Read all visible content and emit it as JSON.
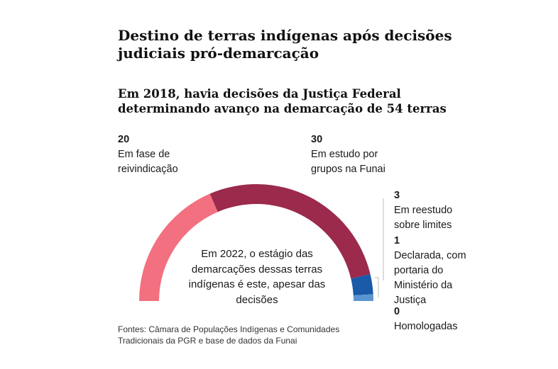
{
  "title": "Destino de terras indígenas após decisões judiciais pró-demarcação",
  "subtitle": "Em 2018, havia decisões da Justiça Federal determinando avanço na demarcação de 54 terras",
  "center_note": "Em 2022, o estágio das demarcações dessas terras indígenas é este, apesar das decisões",
  "source": "Fontes: Câmara de Populações Indígenas e Comunidades Tradicionais da PGR e base de dados da Funai",
  "chart_data": {
    "type": "pie",
    "variant": "semi-donut",
    "total": 54,
    "categories": [
      "Em fase de reivindicação",
      "Em estudo por grupos na Funai",
      "Em reestudo sobre limites",
      "Declarada, com portaria do Ministério da Justiça",
      "Homologadas"
    ],
    "values": [
      20,
      30,
      3,
      1,
      0
    ],
    "value_labels": [
      "20",
      "30",
      "3",
      "1",
      "0"
    ],
    "colors": [
      "#f2707f",
      "#9b2a4c",
      "#1a5aa8",
      "#5b95d1",
      "#9dbde0"
    ]
  }
}
